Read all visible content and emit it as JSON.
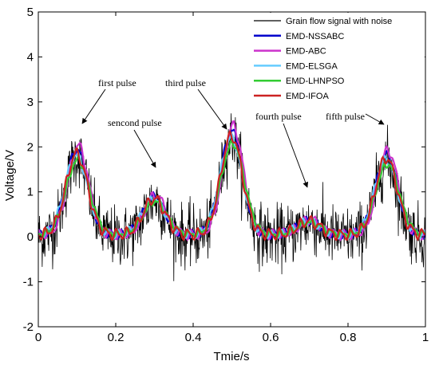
{
  "chart_data": {
    "type": "line",
    "xlabel": "Tmie/s",
    "ylabel": "Voltage/V",
    "xlim": [
      0,
      1
    ],
    "ylim": [
      -2,
      5
    ],
    "x_ticks": [
      "0",
      "0.2",
      "0.4",
      "0.6",
      "0.8",
      "1"
    ],
    "y_ticks": [
      "-2",
      "-1",
      "0",
      "1",
      "2",
      "3",
      "4",
      "5"
    ],
    "grid": false,
    "legend_position": "top-right",
    "pulses": [
      {
        "center": 0.1,
        "peak": 1.8
      },
      {
        "center": 0.3,
        "peak": 0.8
      },
      {
        "center": 0.5,
        "peak": 2.2
      },
      {
        "center": 0.7,
        "peak": 0.3
      },
      {
        "center": 0.9,
        "peak": 1.7
      }
    ],
    "series": [
      {
        "name": "Grain flow signal with noise",
        "color": "#000000",
        "noise_amplitude": 0.6
      },
      {
        "name": "EMD-NSSABC",
        "color": "#0000cc"
      },
      {
        "name": "EMD-ABC",
        "color": "#cc33cc"
      },
      {
        "name": "EMD-ELSGA",
        "color": "#66ccff"
      },
      {
        "name": "EMD-LHNPSO",
        "color": "#33cc33"
      },
      {
        "name": "EMD-IFOA",
        "color": "#cc2222"
      }
    ],
    "annotations": [
      {
        "text": "first pulse",
        "x": 0.11,
        "y": 2.9
      },
      {
        "text": "sencond pulse",
        "x": 0.2,
        "y": 1.3
      },
      {
        "text": "third pulse",
        "x": 0.49,
        "y": 2.6
      },
      {
        "text": "fourth pulse",
        "x": 0.7,
        "y": 1.4
      },
      {
        "text": "fifth pulse",
        "x": 0.89,
        "y": 2.4
      }
    ]
  }
}
